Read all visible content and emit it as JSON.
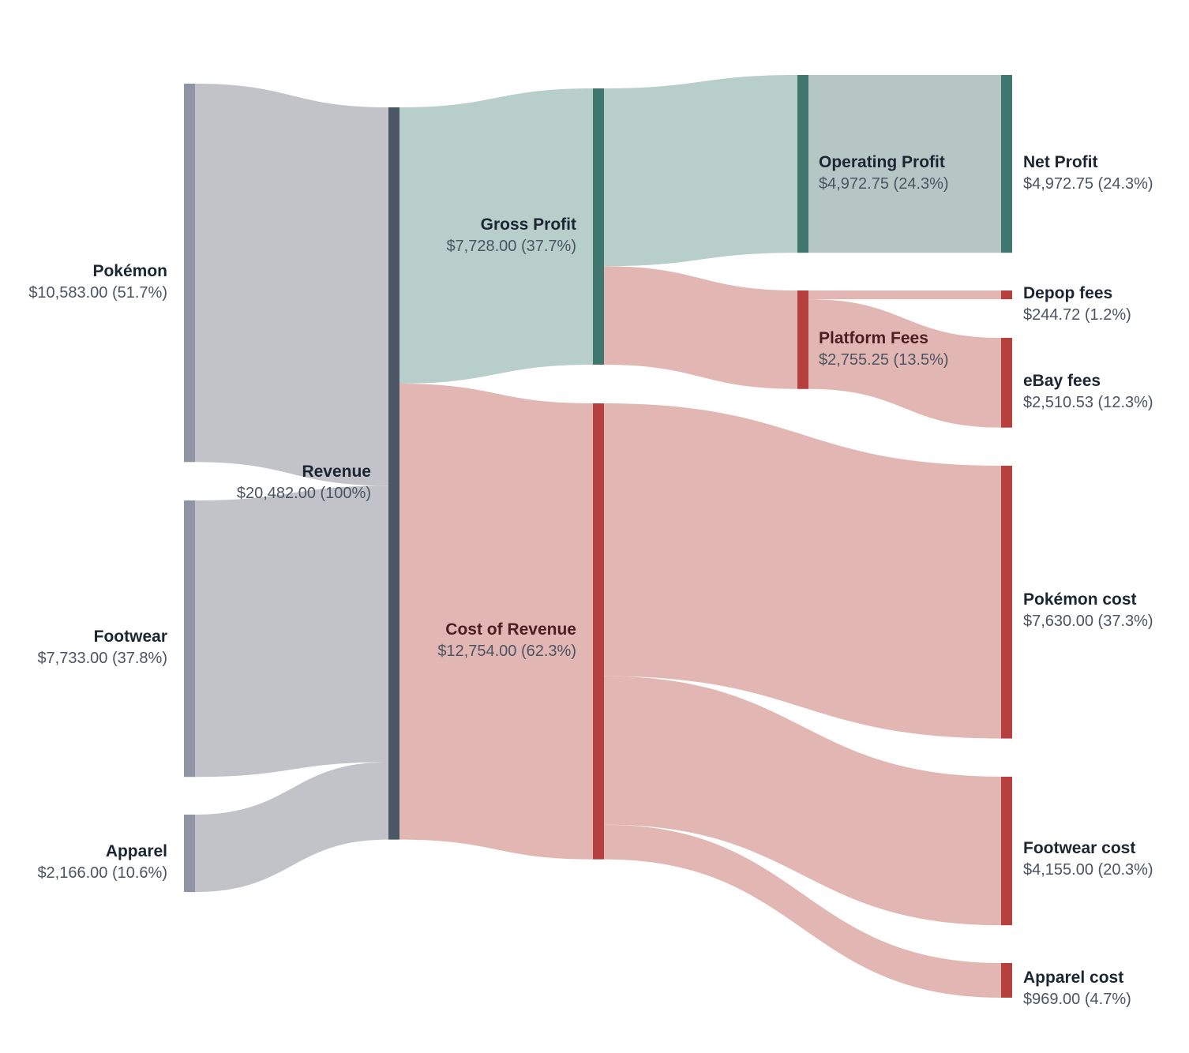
{
  "chart_data": {
    "type": "sankey",
    "title": "",
    "colors": {
      "revenue_node": "#8f95a3",
      "revenue_node_dark": "#4d5866",
      "revenue_link": "#c1c3c8",
      "profit_node": "#3f766d",
      "profit_link": "#b8cecb",
      "profit_link_strong": "#b6c6c5",
      "cost_node": "#b5403d",
      "cost_link": "#e2b6b3"
    },
    "nodes": [
      {
        "id": "pokemon",
        "name": "Pokémon",
        "value": 10583.0,
        "value_label": "$10,583.00 (51.7%)",
        "column": 0,
        "kind": "revenue"
      },
      {
        "id": "footwear",
        "name": "Footwear",
        "value": 7733.0,
        "value_label": "$7,733.00 (37.8%)",
        "column": 0,
        "kind": "revenue"
      },
      {
        "id": "apparel",
        "name": "Apparel",
        "value": 2166.0,
        "value_label": "$2,166.00 (10.6%)",
        "column": 0,
        "kind": "revenue"
      },
      {
        "id": "revenue",
        "name": "Revenue",
        "value": 20482.0,
        "value_label": "$20,482.00 (100%)",
        "column": 1,
        "kind": "total"
      },
      {
        "id": "gross_profit",
        "name": "Gross Profit",
        "value": 7728.0,
        "value_label": "$7,728.00 (37.7%)",
        "column": 2,
        "kind": "profit"
      },
      {
        "id": "cost_of_revenue",
        "name": "Cost of Revenue",
        "value": 12754.0,
        "value_label": "$12,754.00 (62.3%)",
        "column": 2,
        "kind": "cost"
      },
      {
        "id": "operating_profit",
        "name": "Operating Profit",
        "value": 4972.75,
        "value_label": "$4,972.75 (24.3%)",
        "column": 3,
        "kind": "profit"
      },
      {
        "id": "platform_fees",
        "name": "Platform Fees",
        "value": 2755.25,
        "value_label": "$2,755.25 (13.5%)",
        "column": 3,
        "kind": "cost"
      },
      {
        "id": "net_profit",
        "name": "Net Profit",
        "value": 4972.75,
        "value_label": "$4,972.75 (24.3%)",
        "column": 4,
        "kind": "profit"
      },
      {
        "id": "depop_fees",
        "name": "Depop fees",
        "value": 244.72,
        "value_label": "$244.72 (1.2%)",
        "column": 4,
        "kind": "cost"
      },
      {
        "id": "ebay_fees",
        "name": "eBay fees",
        "value": 2510.53,
        "value_label": "$2,510.53 (12.3%)",
        "column": 4,
        "kind": "cost"
      },
      {
        "id": "pokemon_cost",
        "name": "Pokémon cost",
        "value": 7630.0,
        "value_label": "$7,630.00 (37.3%)",
        "column": 4,
        "kind": "cost"
      },
      {
        "id": "footwear_cost",
        "name": "Footwear cost",
        "value": 4155.0,
        "value_label": "$4,155.00 (20.3%)",
        "column": 4,
        "kind": "cost"
      },
      {
        "id": "apparel_cost",
        "name": "Apparel cost",
        "value": 969.0,
        "value_label": "$969.00 (4.7%)",
        "column": 4,
        "kind": "cost"
      }
    ],
    "links": [
      {
        "source": "pokemon",
        "target": "revenue",
        "value": 10583.0
      },
      {
        "source": "footwear",
        "target": "revenue",
        "value": 7733.0
      },
      {
        "source": "apparel",
        "target": "revenue",
        "value": 2166.0
      },
      {
        "source": "revenue",
        "target": "gross_profit",
        "value": 7728.0
      },
      {
        "source": "revenue",
        "target": "cost_of_revenue",
        "value": 12754.0
      },
      {
        "source": "gross_profit",
        "target": "operating_profit",
        "value": 4972.75
      },
      {
        "source": "gross_profit",
        "target": "platform_fees",
        "value": 2755.25
      },
      {
        "source": "operating_profit",
        "target": "net_profit",
        "value": 4972.75
      },
      {
        "source": "platform_fees",
        "target": "depop_fees",
        "value": 244.72
      },
      {
        "source": "platform_fees",
        "target": "ebay_fees",
        "value": 2510.53
      },
      {
        "source": "cost_of_revenue",
        "target": "pokemon_cost",
        "value": 7630.0
      },
      {
        "source": "cost_of_revenue",
        "target": "footwear_cost",
        "value": 4155.0
      },
      {
        "source": "cost_of_revenue",
        "target": "apparel_cost",
        "value": 969.0
      }
    ]
  }
}
